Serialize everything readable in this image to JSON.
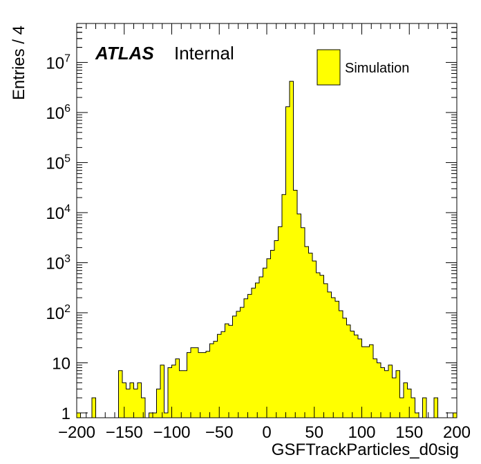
{
  "chart_data": {
    "type": "bar",
    "histogram": true,
    "log_y": true,
    "xlabel": "GSFTrackParticles_d0sig",
    "ylabel": "Entries / 4",
    "xlim": [
      -200,
      200
    ],
    "ylim": [
      0.8,
      60000000
    ],
    "bin_width": 4,
    "fill_color": "#ffff00",
    "line_color": "#000000",
    "branding": {
      "experiment": "ATLAS",
      "status": "Internal"
    },
    "legend": {
      "position": "top-right",
      "entries": [
        "Simulation"
      ]
    },
    "x_ticks": [
      {
        "value": -200,
        "label": "−200"
      },
      {
        "value": -150,
        "label": "−150"
      },
      {
        "value": -100,
        "label": "−100"
      },
      {
        "value": -50,
        "label": "−50"
      },
      {
        "value": 0,
        "label": "0"
      },
      {
        "value": 50,
        "label": "50"
      },
      {
        "value": 100,
        "label": "100"
      },
      {
        "value": 150,
        "label": "150"
      },
      {
        "value": 200,
        "label": "200"
      }
    ],
    "y_ticks": [
      {
        "value": 1,
        "base": "1",
        "exp": ""
      },
      {
        "value": 10,
        "base": "10",
        "exp": ""
      },
      {
        "value": 100,
        "base": "10",
        "exp": "2"
      },
      {
        "value": 1000,
        "base": "10",
        "exp": "3"
      },
      {
        "value": 10000,
        "base": "10",
        "exp": "4"
      },
      {
        "value": 100000,
        "base": "10",
        "exp": "5"
      },
      {
        "value": 1000000,
        "base": "10",
        "exp": "6"
      },
      {
        "value": 10000000,
        "base": "10",
        "exp": "7"
      }
    ],
    "bin_edges_start": -200,
    "values": [
      1,
      0,
      0,
      0,
      2,
      0,
      0,
      0,
      0,
      0,
      0,
      7,
      4,
      3,
      4,
      3,
      4,
      2,
      0,
      1,
      1,
      3,
      9,
      1,
      8,
      9,
      12,
      7,
      7,
      16,
      20,
      20,
      16,
      16,
      17,
      24,
      27,
      37,
      42,
      60,
      56,
      86,
      107,
      128,
      190,
      233,
      311,
      393,
      521,
      781,
      1197,
      1770,
      2757,
      5219,
      23000,
      1300000,
      4200000,
      28000,
      9400,
      5000,
      2100,
      1550,
      1080,
      630,
      560,
      380,
      260,
      200,
      170,
      110,
      78,
      57,
      43,
      36,
      30,
      21,
      21,
      23,
      12,
      10,
      8,
      7,
      9,
      5,
      7,
      2,
      4,
      3,
      2,
      1,
      0,
      2,
      0,
      0,
      2,
      0,
      0,
      0,
      0,
      1
    ]
  }
}
